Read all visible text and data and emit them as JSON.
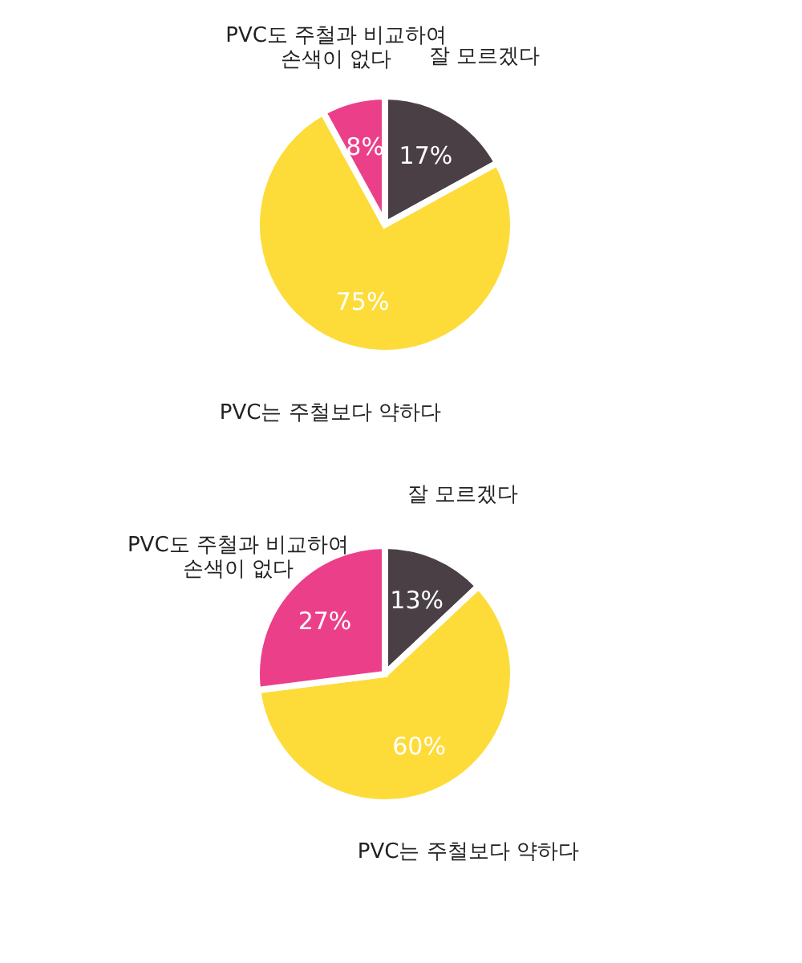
{
  "chart_data": [
    {
      "type": "pie",
      "categories": [
        "잘 모르겠다",
        "PVC는 주철보다 약하다",
        "PVC도 주철과 비교하여\n손색이 없다"
      ],
      "values": [
        17,
        75,
        8
      ],
      "value_labels": [
        "17%",
        "75%",
        "8%"
      ],
      "colors": [
        "#4a3f45",
        "#fddc3a",
        "#ec3f8a"
      ],
      "legend": false
    },
    {
      "type": "pie",
      "categories": [
        "잘 모르겠다",
        "PVC는 주철보다 약하다",
        "PVC도 주철과 비교하여\n손색이 없다"
      ],
      "values": [
        13,
        60,
        27
      ],
      "value_labels": [
        "13%",
        "60%",
        "27%"
      ],
      "colors": [
        "#4a3f45",
        "#fddc3a",
        "#ec3f8a"
      ],
      "legend": false
    }
  ]
}
